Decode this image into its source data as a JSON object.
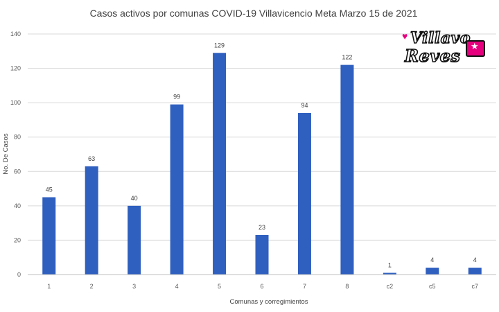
{
  "chart_data": {
    "type": "bar",
    "title": "Casos activos por comunas COVID-19 Villavicencio Meta Marzo 15 de 2021",
    "xlabel": "Comunas y corregimientos",
    "ylabel": "No. De Casos",
    "categories": [
      "1",
      "2",
      "3",
      "4",
      "5",
      "6",
      "7",
      "8",
      "c2",
      "c5",
      "c7"
    ],
    "values": [
      45,
      63,
      40,
      99,
      129,
      23,
      94,
      122,
      1,
      4,
      4
    ],
    "ylim": [
      0,
      140
    ],
    "yticks": [
      0,
      20,
      40,
      60,
      80,
      100,
      120,
      140
    ],
    "grid": true,
    "bar_color": "#2f5fbf"
  },
  "logo": {
    "line1": "Villavo",
    "line2": "Reves"
  }
}
